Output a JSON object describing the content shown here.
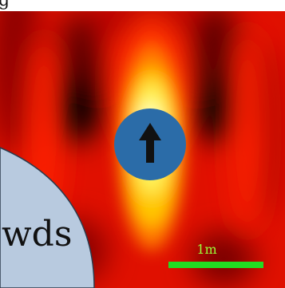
{
  "top_glyph": "g",
  "heatmap": {
    "colormap": [
      "#000000",
      "#7a0000",
      "#d80000",
      "#ff2a00",
      "#ff8a00",
      "#ffe000",
      "#ffffd0"
    ]
  },
  "marker": {
    "fill_color": "#2b6ca8",
    "icon": "arrow-up-icon"
  },
  "label_bubble": {
    "text": "wds",
    "fill_color": "#b8cadf"
  },
  "scale_bar": {
    "label": "1m",
    "color": "#22dd22"
  }
}
